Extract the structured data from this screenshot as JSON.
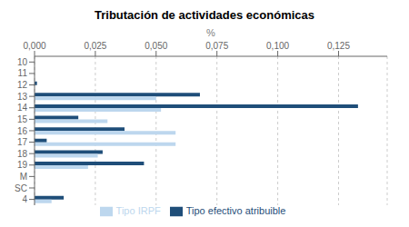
{
  "chart_data": {
    "type": "bar",
    "orientation": "horizontal",
    "title": "Tributación de actividades económicas",
    "x_label": "%",
    "categories": [
      "10",
      "11",
      "12",
      "13",
      "14",
      "15",
      "16",
      "17",
      "18",
      "19",
      "M",
      "SC",
      "4"
    ],
    "series": [
      {
        "name": "Tipo efectivo atribuible",
        "color": "#1F4E79",
        "values": [
          0.0,
          0.0,
          0.001,
          0.068,
          0.133,
          0.018,
          0.037,
          0.005,
          0.028,
          0.045,
          0.0,
          0.0,
          0.012
        ]
      },
      {
        "name": "Tipo IRPF",
        "color": "#BDD7EE",
        "values": [
          0.0,
          0.0,
          0.0,
          0.05,
          0.052,
          0.03,
          0.058,
          0.058,
          0.026,
          0.022,
          0.0,
          0.0,
          0.007
        ]
      }
    ],
    "xlim": [
      0,
      0.145
    ],
    "xticks": [
      {
        "value": 0.0,
        "label": "0,000"
      },
      {
        "value": 0.025,
        "label": "0,025"
      },
      {
        "value": 0.05,
        "label": "0,050"
      },
      {
        "value": 0.075,
        "label": "0,075"
      },
      {
        "value": 0.1,
        "label": "0,100"
      },
      {
        "value": 0.125,
        "label": "0,125"
      }
    ],
    "grid": true,
    "legend": "bottom"
  }
}
